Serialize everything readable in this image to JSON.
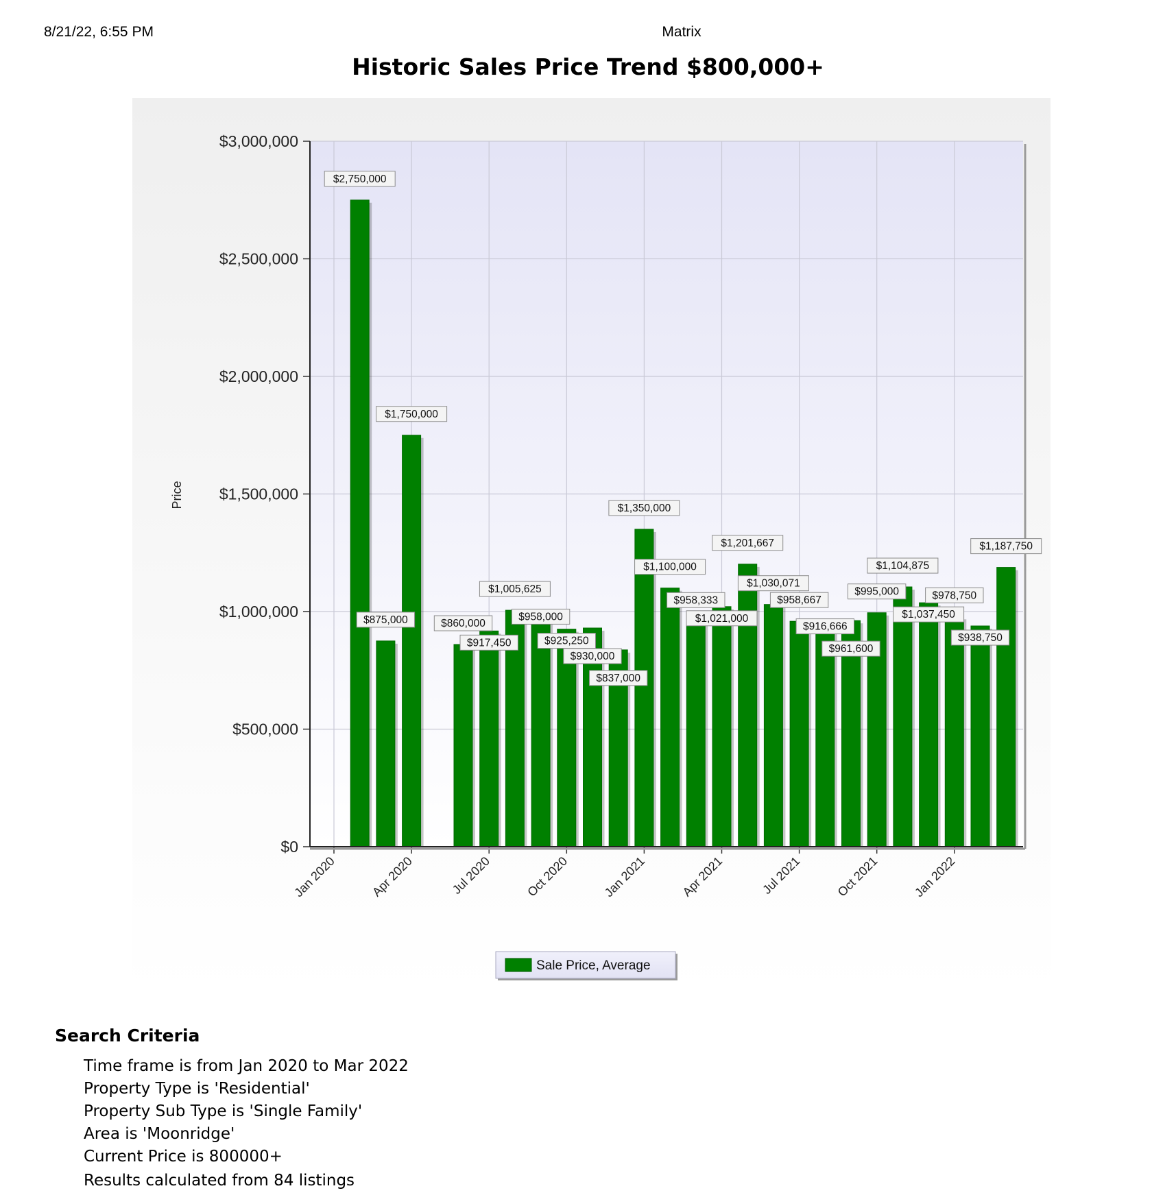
{
  "header": {
    "print_date": "8/21/22, 6:55 PM",
    "app_name": "Matrix",
    "report_title": "Historic Sales Price Trend $800,000+"
  },
  "chart_data": {
    "type": "bar",
    "title": "Historic Sales Price Trend $800,000+",
    "xlabel": "",
    "ylabel": "Price",
    "ylim": [
      0,
      3000000
    ],
    "y_ticks": [
      0,
      500000,
      1000000,
      1500000,
      2000000,
      2500000,
      3000000
    ],
    "y_tick_labels": [
      "$0",
      "$500,000",
      "$1,000,000",
      "$1,500,000",
      "$2,000,000",
      "$2,500,000",
      "$3,000,000"
    ],
    "x_tick_labels": [
      "Jan 2020",
      "Apr 2020",
      "Jul 2020",
      "Oct 2020",
      "Jan 2021",
      "Apr 2021",
      "Jul 2021",
      "Oct 2021",
      "Jan 2022"
    ],
    "grid": true,
    "legend_position": "bottom-center",
    "series": [
      {
        "name": "Sale Price, Average",
        "color": "#008000",
        "points": [
          {
            "month": "2020-02",
            "value": 2750000,
            "label": "$2,750,000"
          },
          {
            "month": "2020-03",
            "value": 875000,
            "label": "$875,000"
          },
          {
            "month": "2020-04",
            "value": 1750000,
            "label": "$1,750,000"
          },
          {
            "month": "2020-06",
            "value": 860000,
            "label": "$860,000"
          },
          {
            "month": "2020-07",
            "value": 917450,
            "label": "$917,450"
          },
          {
            "month": "2020-08",
            "value": 1005625,
            "label": "$1,005,625"
          },
          {
            "month": "2020-09",
            "value": 958000,
            "label": "$958,000"
          },
          {
            "month": "2020-10",
            "value": 925250,
            "label": "$925,250"
          },
          {
            "month": "2020-11",
            "value": 930000,
            "label": "$930,000"
          },
          {
            "month": "2020-12",
            "value": 837000,
            "label": "$837,000"
          },
          {
            "month": "2021-01",
            "value": 1350000,
            "label": "$1,350,000"
          },
          {
            "month": "2021-02",
            "value": 1100000,
            "label": "$1,100,000"
          },
          {
            "month": "2021-03",
            "value": 958333,
            "label": "$958,333"
          },
          {
            "month": "2021-04",
            "value": 1021000,
            "label": "$1,021,000"
          },
          {
            "month": "2021-05",
            "value": 1201667,
            "label": "$1,201,667"
          },
          {
            "month": "2021-06",
            "value": 1030071,
            "label": "$1,030,071"
          },
          {
            "month": "2021-07",
            "value": 958667,
            "label": "$958,667"
          },
          {
            "month": "2021-08",
            "value": 916666,
            "label": "$916,666"
          },
          {
            "month": "2021-09",
            "value": 961600,
            "label": "$961,600"
          },
          {
            "month": "2021-10",
            "value": 995000,
            "label": "$995,000"
          },
          {
            "month": "2021-11",
            "value": 1104875,
            "label": "$1,104,875"
          },
          {
            "month": "2021-12",
            "value": 1037450,
            "label": "$1,037,450"
          },
          {
            "month": "2022-01",
            "value": 978750,
            "label": "$978,750"
          },
          {
            "month": "2022-02",
            "value": 938750,
            "label": "$938,750"
          },
          {
            "month": "2022-03",
            "value": 1187750,
            "label": "$1,187,750"
          }
        ]
      }
    ]
  },
  "search_criteria": {
    "heading": "Search Criteria",
    "items": [
      "Time frame is from Jan 2020 to Mar 2022",
      "Property Type is 'Residential'",
      "Property Sub Type is 'Single Family'",
      "Area is 'Moonridge'",
      "Current Price is 800000+"
    ],
    "results_note": "Results calculated from 84 listings"
  }
}
